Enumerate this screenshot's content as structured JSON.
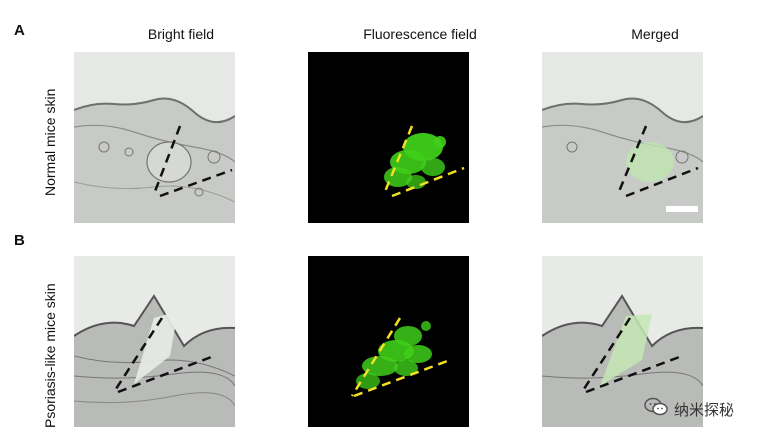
{
  "panels": {
    "a_letter": "A",
    "b_letter": "B"
  },
  "columns": [
    "Bright field",
    "Fluorescence field",
    "Merged"
  ],
  "rows": [
    "Normal mice skin",
    "Psoriasis-like mice skin"
  ],
  "watermark": {
    "text": "纳米探秘",
    "icon": "wechat-icon"
  },
  "colors": {
    "fluorescence": "#3fcf1a",
    "dash_black": "#111111",
    "dash_yellow": "#f2e024",
    "background_dark": "#000000",
    "tissue": "#c9cbc8"
  }
}
